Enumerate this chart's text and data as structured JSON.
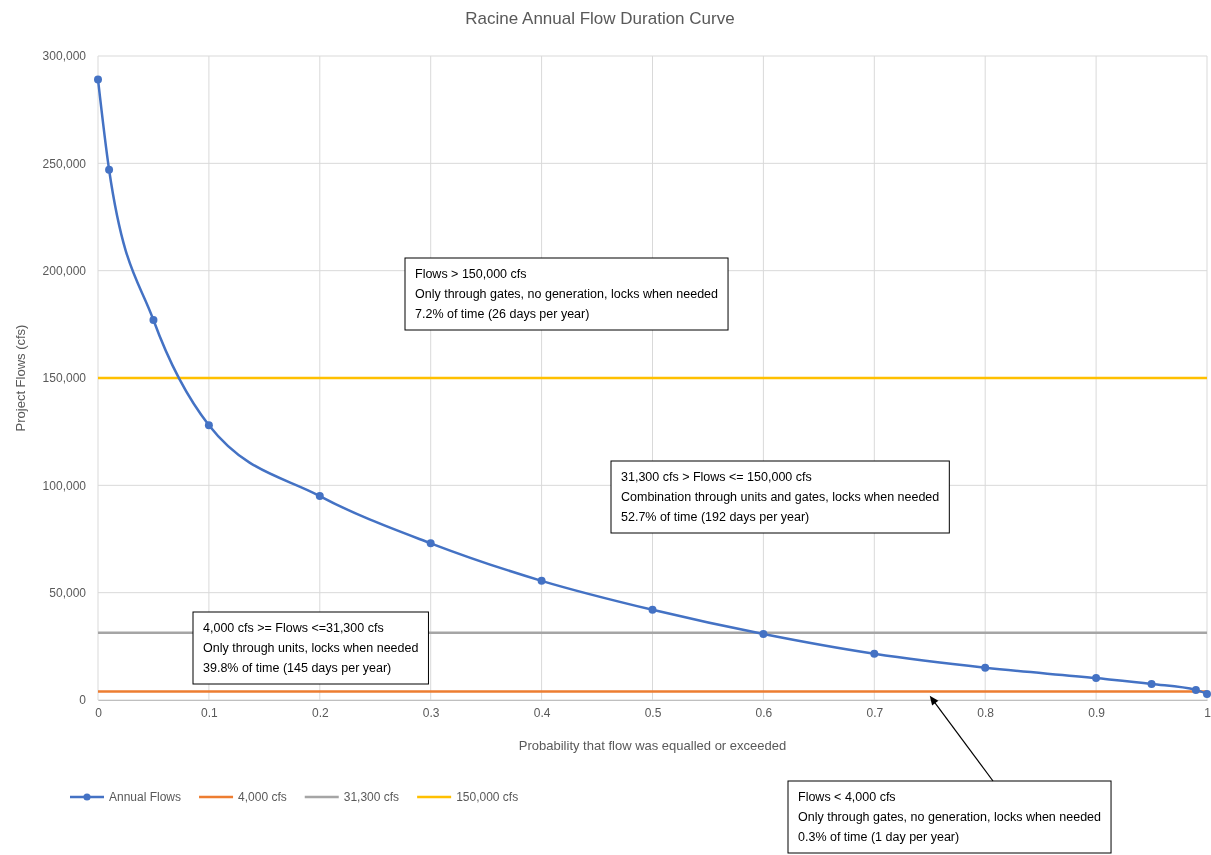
{
  "chart_data": {
    "type": "line",
    "title": "Racine Annual Flow Duration Curve",
    "xlabel": "Probability that flow was equalled or exceeded",
    "ylabel": "Project Flows (cfs)",
    "series": [
      {
        "name": "Annual Flows",
        "color": "#4472c4",
        "marker": "circle",
        "x": [
          0,
          0.01,
          0.05,
          0.1,
          0.2,
          0.3,
          0.4,
          0.5,
          0.6,
          0.7,
          0.8,
          0.9,
          0.95,
          0.99,
          1
        ],
        "values": [
          289000,
          247000,
          177000,
          128000,
          95000,
          73000,
          55500,
          42000,
          30700,
          21500,
          15000,
          10200,
          7500,
          4700,
          2800
        ]
      },
      {
        "name": "4,000 cfs",
        "color": "#ed7d31",
        "marker": "none",
        "x": [
          0,
          1
        ],
        "values": [
          4000,
          4000
        ]
      },
      {
        "name": "31,300 cfs",
        "color": "#a5a5a5",
        "marker": "none",
        "x": [
          0,
          1
        ],
        "values": [
          31300,
          31300
        ]
      },
      {
        "name": "150,000 cfs",
        "color": "#ffc000",
        "marker": "none",
        "x": [
          0,
          1
        ],
        "values": [
          150000,
          150000
        ]
      }
    ],
    "xlim": [
      0,
      1
    ],
    "xticks": [
      0,
      0.1,
      0.2,
      0.3,
      0.4,
      0.5,
      0.6,
      0.7,
      0.8,
      0.9,
      1
    ],
    "ylim": [
      0,
      300000
    ],
    "yticks": [
      {
        "value": 0,
        "label": "0"
      },
      {
        "value": 50000,
        "label": "50,000"
      },
      {
        "value": 100000,
        "label": "100,000"
      },
      {
        "value": 150000,
        "label": "150,000"
      },
      {
        "value": 200000,
        "label": "200,000"
      },
      {
        "value": 250000,
        "label": "250,000"
      },
      {
        "value": 300000,
        "label": "300,000"
      }
    ],
    "grid": true,
    "legend": "bottom",
    "annotations": [
      "Flows > 150,000 cfs\nOnly through gates, no generation, locks when needed\n7.2% of time (26 days per year)",
      "31,300 cfs > Flows <= 150,000 cfs\nCombination through units and gates, locks when needed\n52.7% of time (192 days per year)",
      "4,000 cfs >= Flows <=31,300 cfs\nOnly through units, locks when needed\n39.8% of time (145 days per year)",
      {
        "text": "Flows < 4,000 cfs\nOnly through gates, no generation, locks when needed\n0.3% of time (1 day per year)",
        "x": 0.75,
        "y": 2000
      }
    ]
  }
}
